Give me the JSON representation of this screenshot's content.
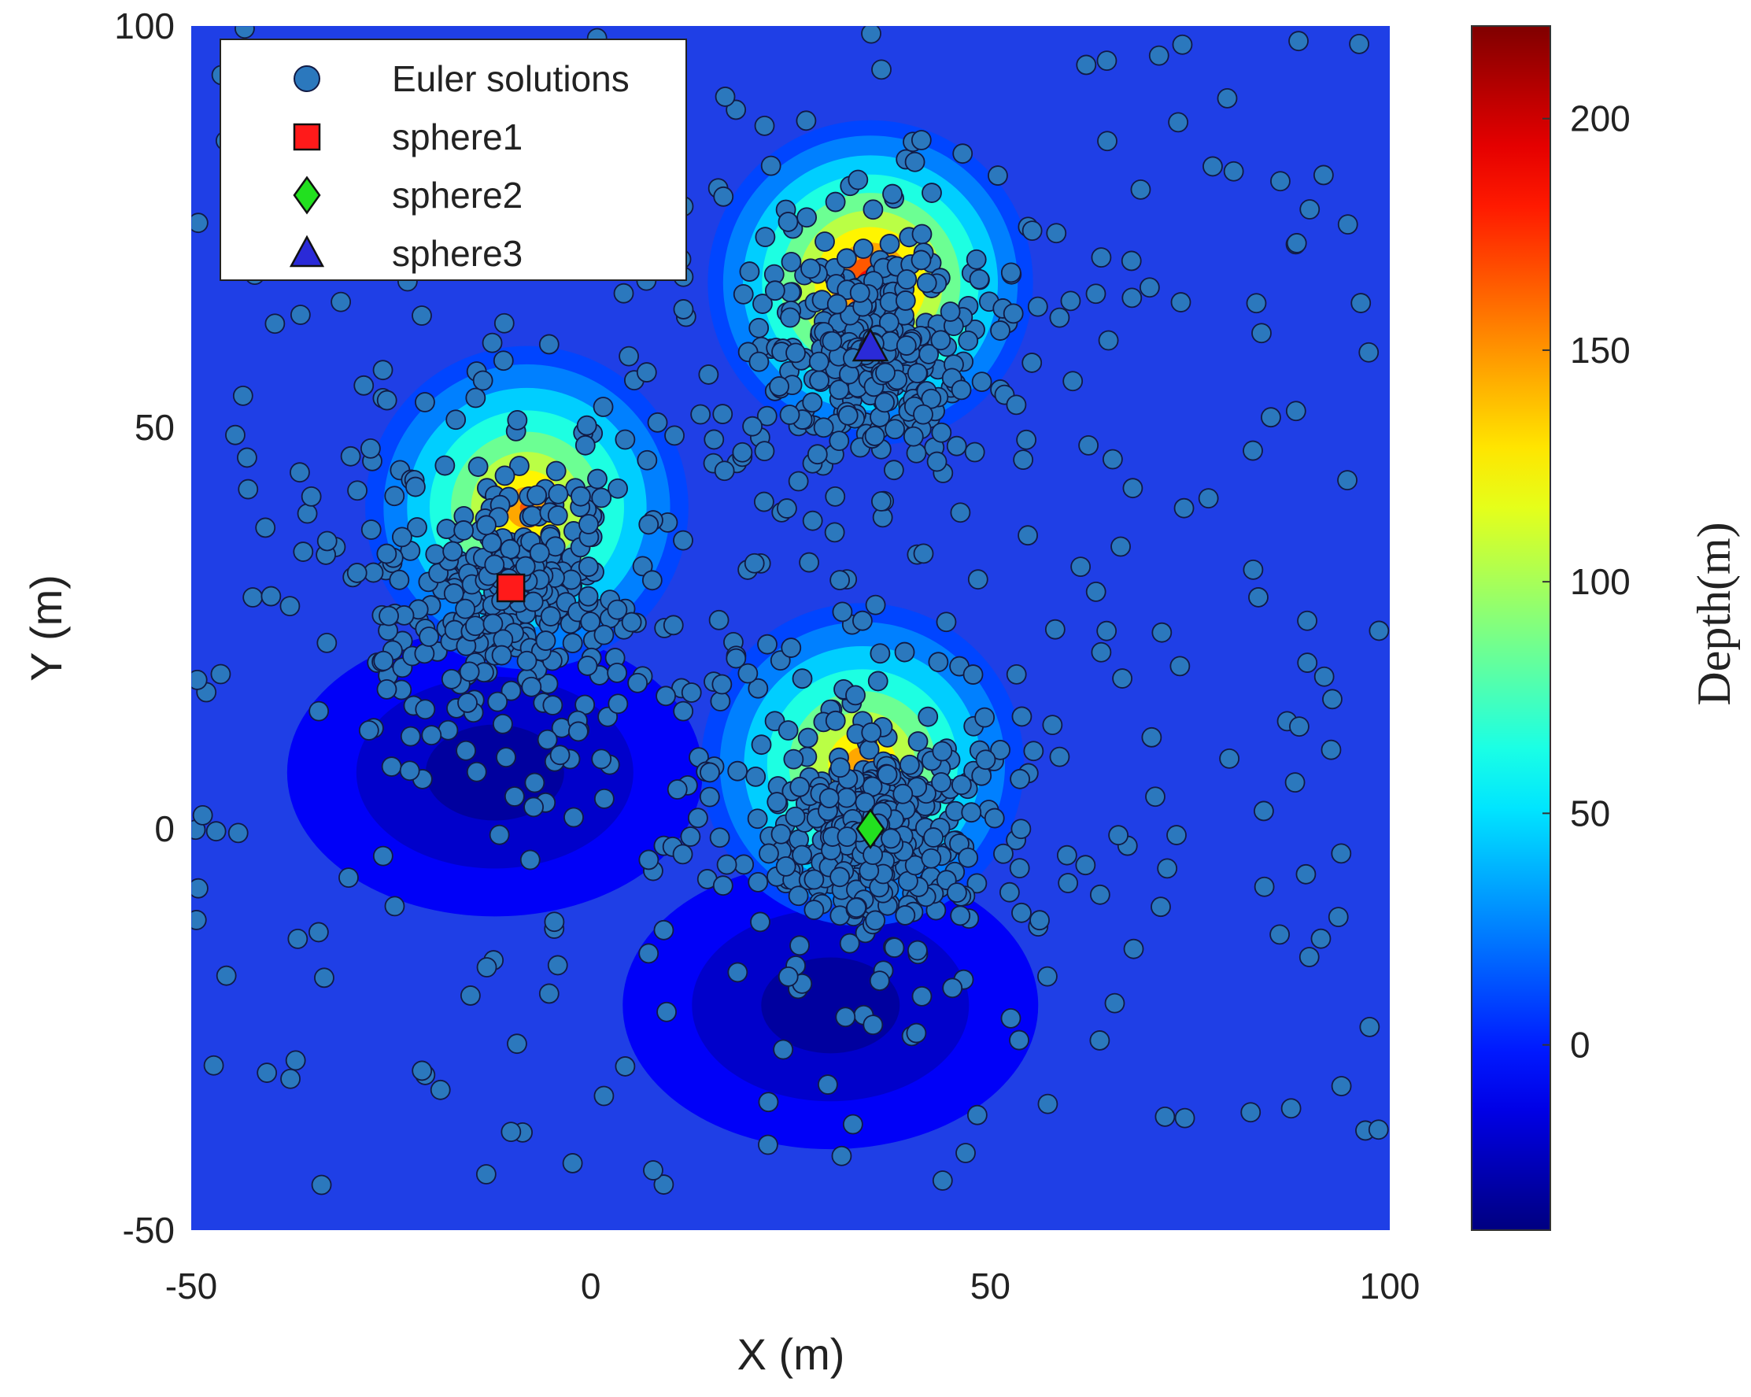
{
  "chart_data": {
    "type": "scatter",
    "title": "",
    "xlabel": "X (m)",
    "ylabel": "Y (m)",
    "xlim": [
      -50,
      100
    ],
    "ylim": [
      -50,
      100
    ],
    "xticks": [
      "-50",
      "0",
      "50",
      "100"
    ],
    "yticks": [
      "-50",
      "0",
      "50",
      "100"
    ],
    "background": "filled contour map of depth",
    "colormap": "jet",
    "colorbar": {
      "label": "Depth(m)",
      "range": [
        -40,
        220
      ],
      "ticks": [
        "0",
        "50",
        "100",
        "150",
        "200"
      ]
    },
    "legend": {
      "placement": "top-left",
      "entries": [
        {
          "label": "Euler solutions",
          "marker": "circle",
          "color": "#2b78bd"
        },
        {
          "label": "sphere1",
          "marker": "square",
          "color": "#ff1a1a"
        },
        {
          "label": "sphere2",
          "marker": "diamond",
          "color": "#22e01f"
        },
        {
          "label": "sphere3",
          "marker": "triangle",
          "color": "#2a2ad8"
        }
      ]
    },
    "spheres": [
      {
        "name": "sphere1",
        "x": -10,
        "y": 30
      },
      {
        "name": "sphere2",
        "x": 35,
        "y": 0
      },
      {
        "name": "sphere3",
        "x": 35,
        "y": 60
      }
    ],
    "euler_clusters": [
      {
        "x": -10,
        "y": 30,
        "count": 430,
        "spread": 16
      },
      {
        "x": 35,
        "y": 0,
        "count": 500,
        "spread": 14
      },
      {
        "x": 35,
        "y": 60,
        "count": 430,
        "spread": 14
      }
    ],
    "euler_scatter_count": 260,
    "depth_highs": [
      {
        "x": -8,
        "y": 40,
        "depth": 165
      },
      {
        "x": 35,
        "y": 68,
        "depth": 200
      },
      {
        "x": 34,
        "y": 8,
        "depth": 160
      }
    ],
    "depth_lows": [
      {
        "x": -12,
        "y": 7,
        "depth": -32
      },
      {
        "x": 30,
        "y": -22,
        "depth": -32
      }
    ]
  }
}
